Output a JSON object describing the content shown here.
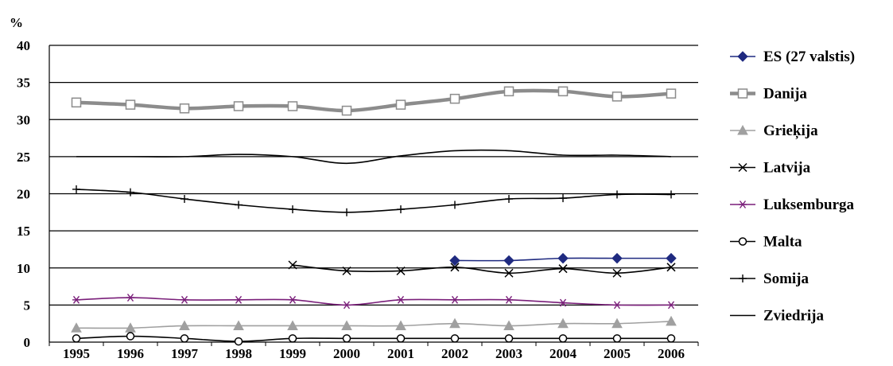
{
  "chart_data": {
    "type": "line",
    "title": "",
    "xlabel": "",
    "ylabel": "%",
    "ylim": [
      0,
      40
    ],
    "yticks": [
      0,
      5,
      10,
      15,
      20,
      25,
      30,
      35,
      40
    ],
    "grid": true,
    "legend_position": "right",
    "categories": [
      "1995",
      "1996",
      "1997",
      "1998",
      "1999",
      "2000",
      "2001",
      "2002",
      "2003",
      "2004",
      "2005",
      "2006"
    ],
    "series": [
      {
        "name": "ES (27 valstis)",
        "color": "#1f2a80",
        "marker": "diamond",
        "values": [
          null,
          null,
          null,
          null,
          null,
          null,
          null,
          11.0,
          11.0,
          11.3,
          11.3,
          11.3
        ]
      },
      {
        "name": "Danija",
        "color": "#8c8c8c",
        "marker": "square",
        "values": [
          32.3,
          32.0,
          31.5,
          31.8,
          31.8,
          31.2,
          32.0,
          32.8,
          33.8,
          33.8,
          33.1,
          33.5
        ]
      },
      {
        "name": "Grieķija",
        "color": "#a0a0a0",
        "marker": "triangle",
        "values": [
          1.9,
          1.9,
          2.2,
          2.2,
          2.2,
          2.2,
          2.2,
          2.5,
          2.2,
          2.5,
          2.5,
          2.8
        ]
      },
      {
        "name": "Latvija",
        "color": "#000000",
        "marker": "x",
        "values": [
          null,
          null,
          null,
          null,
          10.4,
          9.6,
          9.6,
          10.1,
          9.3,
          9.9,
          9.3,
          10.1
        ]
      },
      {
        "name": "Luksemburga",
        "color": "#7a1f7a",
        "marker": "asterisk",
        "values": [
          5.7,
          6.0,
          5.7,
          5.7,
          5.7,
          5.0,
          5.7,
          5.7,
          5.7,
          5.3,
          5.0,
          5.0
        ]
      },
      {
        "name": "Malta",
        "color": "#000000",
        "marker": "circle",
        "values": [
          0.5,
          0.8,
          0.5,
          0.1,
          0.5,
          0.5,
          0.5,
          0.5,
          0.5,
          0.5,
          0.5,
          0.5
        ]
      },
      {
        "name": "Somija",
        "color": "#000000",
        "marker": "plus",
        "values": [
          20.6,
          20.2,
          19.3,
          18.5,
          17.9,
          17.5,
          17.9,
          18.5,
          19.3,
          19.4,
          19.9,
          19.9
        ]
      },
      {
        "name": "Zviedrija",
        "color": "#000000",
        "marker": "none",
        "values": [
          25.0,
          25.0,
          25.0,
          25.3,
          25.0,
          24.1,
          25.1,
          25.8,
          25.8,
          25.2,
          25.2,
          25.0
        ]
      }
    ]
  }
}
